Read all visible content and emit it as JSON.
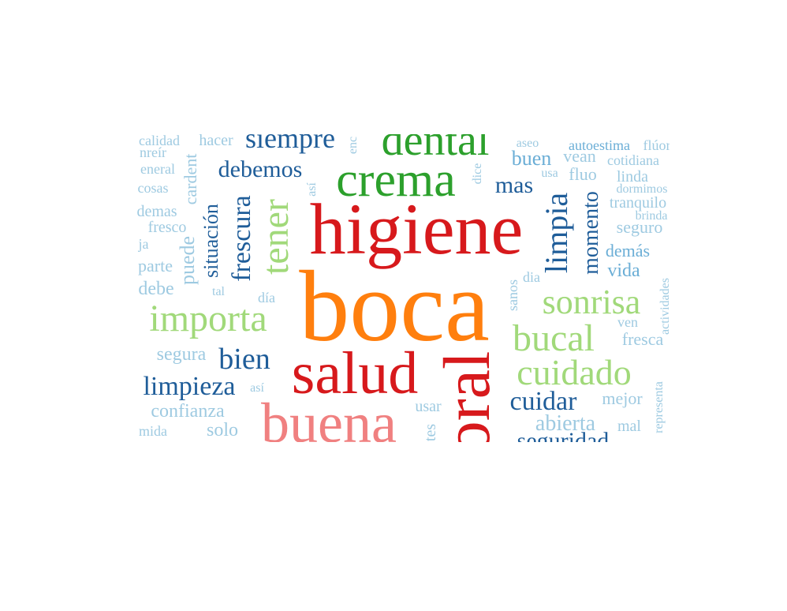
{
  "palette": {
    "light_blue": "#9ecae1",
    "mid_blue": "#6baed6",
    "dark_blue": "#1f5d99",
    "light_green": "#a1d97a",
    "dark_green": "#2ca02c",
    "red": "#d7191c",
    "orange": "#ff7f0e",
    "pink": "#f08080"
  },
  "words": {
    "boca": "boca",
    "higiene": "higiene",
    "salud": "salud",
    "oral": "oral",
    "buena": "buena",
    "crema": "crema",
    "dental": "dental",
    "importa": "importa",
    "tener": "tener",
    "sonrisa": "sonrisa",
    "bucal": "bucal",
    "cuidado": "cuidado",
    "limpieza": "limpieza",
    "limpia": "limpia",
    "frescura": "frescura",
    "situacion": "situación",
    "siempre": "siempre",
    "debemos": "debemos",
    "bien": "bien",
    "cuidar": "cuidar",
    "momento": "momento",
    "mas": "mas",
    "seguridad": "seguridad",
    "abierta": "abierta",
    "puede": "puede",
    "cardent": "cardent",
    "confianza": "confianza",
    "solo": "solo",
    "segura": "segura",
    "buen": "buen",
    "vean": "vean",
    "fluo": "fluo",
    "autoestima": "autoestima",
    "fluor": "flúor",
    "linda": "linda",
    "cotidiana": "cotidiana",
    "tranquilo": "tranquilo",
    "seguro": "seguro",
    "demas_accent": "demás",
    "vida": "vida",
    "fresca": "fresca",
    "mejor": "mejor",
    "mal": "mal",
    "dormimos": "dormimos",
    "brinda": "brinda",
    "ven": "ven",
    "actividades": "actividades",
    "representa": "representa",
    "sanos": "sanos",
    "dia_plain": "dia",
    "dia_accent": "día",
    "tal": "tal",
    "asi_h": "así",
    "asi_v": "así",
    "usar": "usar",
    "dientes": "tes",
    "calidad": "calidad",
    "hacer": "hacer",
    "sonreir": "nreír",
    "general": "eneral",
    "cosas": "cosas",
    "demas": "demas",
    "fresco": "fresco",
    "deja": "ja",
    "parte": "parte",
    "debe": "debe",
    "comida": "mida",
    "aseo": "aseo",
    "usa": "usa",
    "dice": "dice",
    "encia": "enc"
  }
}
